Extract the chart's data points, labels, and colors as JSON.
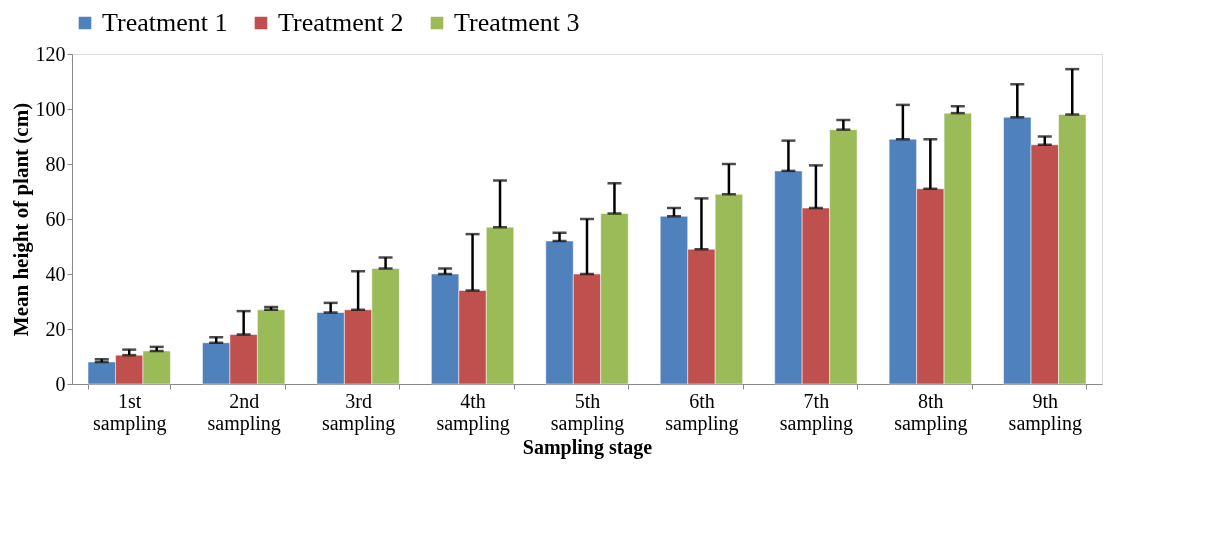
{
  "chart_data": {
    "type": "bar",
    "xlabel": "Sampling stage",
    "ylabel": "Mean height of plant (cm)",
    "categories": [
      "1st sampling",
      "2nd sampling",
      "3rd sampling",
      "4th sampling",
      "5th sampling",
      "6th sampling",
      "7th sampling",
      "8th sampling",
      "9th sampling"
    ],
    "series": [
      {
        "name": "Treatment 1",
        "color": "#4f81bd",
        "values": [
          8,
          15,
          26,
          40,
          52,
          61,
          77.5,
          89,
          97
        ],
        "errors": [
          [
            8,
            9
          ],
          [
            15,
            17
          ],
          [
            26,
            29.5
          ],
          [
            40,
            42
          ],
          [
            52,
            55
          ],
          [
            61,
            64
          ],
          [
            77.5,
            88.5
          ],
          [
            89,
            101.5
          ],
          [
            97,
            109
          ]
        ]
      },
      {
        "name": "Treatment 2",
        "color": "#c0504d",
        "values": [
          10.5,
          18,
          27,
          34,
          40,
          49,
          64,
          71,
          87
        ],
        "errors": [
          [
            10.5,
            12.5
          ],
          [
            18,
            26.5
          ],
          [
            27,
            41
          ],
          [
            34,
            54.5
          ],
          [
            40,
            60
          ],
          [
            49,
            67.5
          ],
          [
            64,
            79.5
          ],
          [
            71,
            89
          ],
          [
            87,
            90
          ]
        ]
      },
      {
        "name": "Treatment 3",
        "color": "#9bbb59",
        "values": [
          12,
          27,
          42,
          57,
          62,
          69,
          92.5,
          98.5,
          98
        ],
        "errors": [
          [
            12,
            13.5
          ],
          [
            27,
            28
          ],
          [
            42,
            46
          ],
          [
            57,
            74
          ],
          [
            62,
            73
          ],
          [
            69,
            80
          ],
          [
            92.5,
            96
          ],
          [
            98.5,
            101
          ],
          [
            98,
            114.5
          ]
        ]
      }
    ],
    "ylim": [
      0,
      120
    ],
    "yticks": [
      0,
      20,
      40,
      60,
      80,
      100,
      120
    ],
    "grid": false,
    "legend": "top"
  }
}
